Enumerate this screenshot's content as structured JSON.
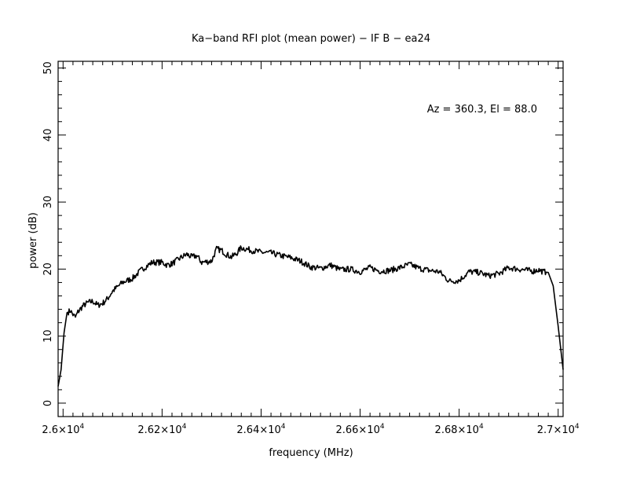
{
  "chart_data": {
    "type": "line",
    "title": "Ka−band RFI plot (mean power) − IF B − ea24",
    "xlabel": "frequency (MHz)",
    "ylabel": "power (dB)",
    "annotation": "Az = 360.3, El = 88.0",
    "xlim": [
      25990,
      27010
    ],
    "ylim": [
      -2,
      51
    ],
    "x_ticks": [
      {
        "value": 26000,
        "mantissa": "2.6",
        "exp": "4"
      },
      {
        "value": 26200,
        "mantissa": "2.62",
        "exp": "4"
      },
      {
        "value": 26400,
        "mantissa": "2.64",
        "exp": "4"
      },
      {
        "value": 26600,
        "mantissa": "2.66",
        "exp": "4"
      },
      {
        "value": 26800,
        "mantissa": "2.68",
        "exp": "4"
      },
      {
        "value": 27000,
        "mantissa": "2.7",
        "exp": "4"
      }
    ],
    "y_ticks": [
      {
        "value": 0,
        "label": "0"
      },
      {
        "value": 10,
        "label": "10"
      },
      {
        "value": 20,
        "label": "20"
      },
      {
        "value": 30,
        "label": "30"
      },
      {
        "value": 40,
        "label": "40"
      },
      {
        "value": 50,
        "label": "50"
      }
    ],
    "grid": false,
    "series": [
      {
        "color": "#000000",
        "x": [
          25990,
          25996,
          26002,
          26008,
          26015,
          26020,
          26025,
          26030,
          26040,
          26050,
          26060,
          26070,
          26080,
          26090,
          26100,
          26120,
          26140,
          26160,
          26180,
          26200,
          26210,
          26220,
          26240,
          26250,
          26260,
          26270,
          26280,
          26300,
          26310,
          26320,
          26330,
          26340,
          26350,
          26360,
          26380,
          26400,
          26420,
          26440,
          26460,
          26480,
          26500,
          26520,
          26540,
          26560,
          26580,
          26600,
          26620,
          26640,
          26660,
          26680,
          26700,
          26720,
          26740,
          26760,
          26780,
          26800,
          26820,
          26840,
          26860,
          26880,
          26900,
          26920,
          26940,
          26950,
          26960,
          26970,
          26980,
          26990,
          27000,
          27010
        ],
        "y": [
          2.5,
          5.0,
          10.5,
          13.5,
          13.8,
          13.2,
          12.8,
          13.6,
          14.5,
          15.0,
          15.2,
          14.6,
          14.9,
          15.6,
          16.7,
          18.0,
          18.6,
          20.0,
          21.0,
          21.0,
          20.6,
          20.8,
          21.8,
          22.2,
          21.8,
          22.0,
          21.0,
          21.2,
          23.0,
          22.8,
          22.2,
          21.8,
          22.3,
          23.2,
          22.8,
          22.5,
          22.4,
          22.0,
          21.7,
          21.2,
          20.3,
          20.1,
          20.6,
          19.9,
          20.0,
          19.6,
          20.2,
          19.7,
          19.8,
          20.2,
          20.7,
          20.1,
          19.8,
          19.6,
          18.2,
          18.3,
          19.6,
          19.5,
          19.0,
          19.3,
          20.2,
          20.0,
          19.8,
          19.7,
          19.9,
          19.6,
          19.5,
          17.5,
          11.5,
          5.0
        ]
      }
    ]
  }
}
